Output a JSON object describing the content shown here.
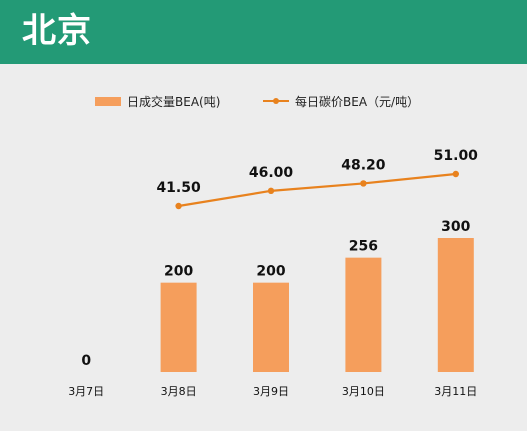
{
  "header": {
    "title": "北京"
  },
  "chart_data": {
    "type": "bar",
    "title": "北京",
    "categories": [
      "3月7日",
      "3月8日",
      "3月9日",
      "3月10日",
      "3月11日"
    ],
    "series": [
      {
        "name": "日成交量BEA(吨)",
        "type": "bar",
        "values": [
          0,
          200,
          200,
          256,
          300
        ],
        "labels": [
          "0",
          "200",
          "200",
          "256",
          "300"
        ]
      },
      {
        "name": "每日碳价BEA（元/吨）",
        "type": "line",
        "values": [
          null,
          41.5,
          46.0,
          48.2,
          51.0
        ],
        "labels": [
          null,
          "41.50",
          "46.00",
          "48.20",
          "51.00"
        ]
      }
    ],
    "legend_position": "top",
    "grid": false,
    "colors": {
      "bar": "#f59e5c",
      "line": "#e8821e",
      "header": "#239a76",
      "background": "#ededed"
    }
  }
}
